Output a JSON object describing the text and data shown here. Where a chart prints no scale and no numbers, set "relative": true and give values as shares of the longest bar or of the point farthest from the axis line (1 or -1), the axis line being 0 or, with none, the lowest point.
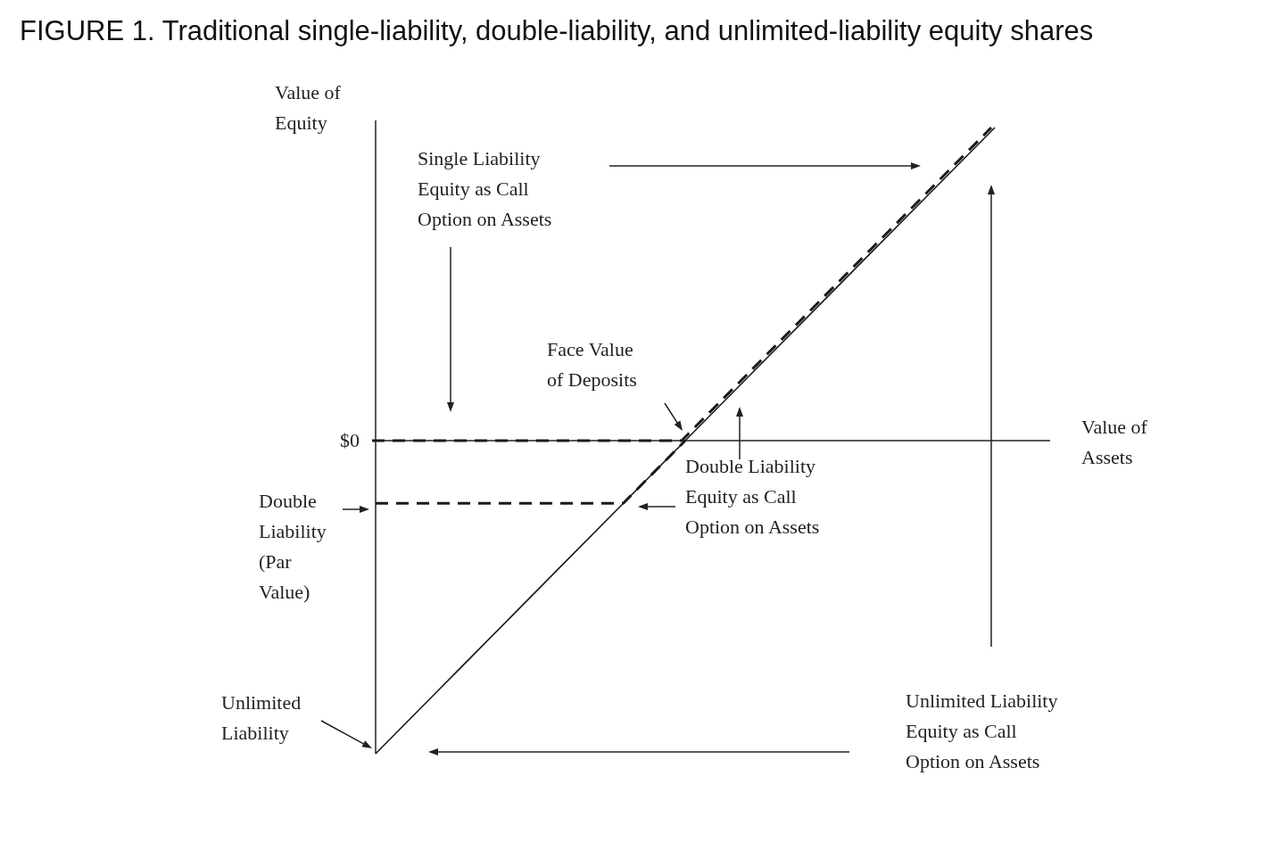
{
  "chart_data": {
    "type": "line",
    "title": "FIGURE 1. Traditional single-liability, double-liability, and unlimited-liability equity shares",
    "xlabel": "Value of Assets",
    "ylabel": "Value of Equity",
    "relative": true,
    "marker": "none",
    "categories": [
      null,
      null,
      null,
      null,
      null,
      null,
      null,
      null,
      null,
      null,
      null
    ],
    "series": [
      {
        "color": "#1a1a1a",
        "line_style": "solid",
        "values": [
          -1,
          -0.8,
          -0.6,
          -0.4,
          -0.2,
          0,
          0.2,
          0.4,
          0.6,
          0.8,
          1
        ]
      },
      {
        "color": "#1a1a1a",
        "line_style": "dashed",
        "values": [
          0,
          0,
          0,
          0,
          0,
          0,
          0.2,
          0.4,
          0.6,
          0.8,
          1
        ]
      },
      {
        "color": "#1a1a1a",
        "line_style": "dashed",
        "values": [
          -0.2,
          -0.2,
          -0.2,
          -0.2,
          -0.2,
          0,
          null,
          null,
          null,
          null,
          null
        ]
      }
    ],
    "annotations": [
      "$0",
      "Face Value of Deposits",
      "Double Liability (Par Value)",
      "Unlimited Liability",
      "Single Liability Equity as Call Option on Assets",
      "Double Liability Equity as Call Option on Assets",
      "Unlimited Liability Equity as Call Option on Assets"
    ]
  }
}
